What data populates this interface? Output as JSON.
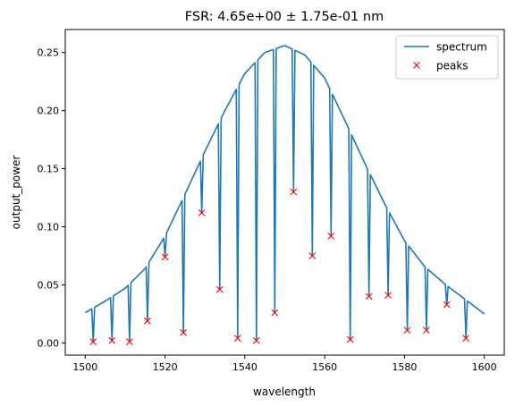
{
  "chart_data": {
    "type": "line",
    "title": "FSR: 4.65e+00 ± 1.75e-01 nm",
    "xlabel": "wavelength",
    "ylabel": "output_power",
    "xlim": [
      1495,
      1605
    ],
    "ylim": [
      -0.0105,
      0.2698
    ],
    "x_ticks": [
      1500,
      1520,
      1540,
      1560,
      1580,
      1600
    ],
    "x_tick_labels": [
      "1500",
      "1520",
      "1540",
      "1560",
      "1580",
      "1600"
    ],
    "y_ticks": [
      0.0,
      0.05,
      0.1,
      0.15,
      0.2,
      0.25
    ],
    "y_tick_labels": [
      "0.00",
      "0.05",
      "0.10",
      "0.15",
      "0.20",
      "0.25"
    ],
    "grid": false,
    "legend_position": "top-right",
    "series": [
      {
        "name": "spectrum",
        "style": "line",
        "color": "#1f77b4",
        "envelope_x": [
          1500,
          1505,
          1510,
          1515,
          1520,
          1525,
          1530,
          1535,
          1540,
          1545,
          1550,
          1555,
          1560,
          1565,
          1570,
          1575,
          1580,
          1585,
          1590,
          1595,
          1600
        ],
        "envelope_y": [
          0.026,
          0.036,
          0.047,
          0.064,
          0.092,
          0.128,
          0.165,
          0.2,
          0.232,
          0.25,
          0.256,
          0.248,
          0.228,
          0.192,
          0.155,
          0.12,
          0.088,
          0.066,
          0.051,
          0.038,
          0.025
        ]
      },
      {
        "name": "peaks",
        "style": "marker-x",
        "color": "#ff0000",
        "x": [
          1502.0,
          1506.7,
          1511.1,
          1515.6,
          1520.0,
          1524.6,
          1529.2,
          1533.7,
          1538.2,
          1542.9,
          1547.5,
          1552.2,
          1556.9,
          1561.6,
          1566.4,
          1571.1,
          1575.9,
          1580.7,
          1585.5,
          1590.6,
          1595.4
        ],
        "y": [
          0.001,
          0.002,
          0.001,
          0.019,
          0.074,
          0.009,
          0.112,
          0.046,
          0.004,
          0.002,
          0.026,
          0.13,
          0.075,
          0.092,
          0.003,
          0.04,
          0.041,
          0.011,
          0.011,
          0.033,
          0.004
        ]
      }
    ]
  }
}
